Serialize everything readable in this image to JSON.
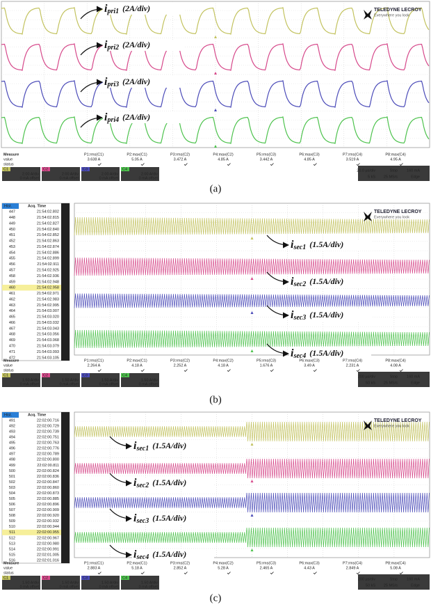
{
  "panels": [
    {
      "caption": "(a)",
      "brand": "TELEDYNE LECROY",
      "tagline": "Everywhere you look",
      "traces": [
        {
          "symbol": "i",
          "sub": "pri1",
          "scale": "(2A/div)"
        },
        {
          "symbol": "i",
          "sub": "pri2",
          "scale": "(2A/div)"
        },
        {
          "symbol": "i",
          "sub": "pri3",
          "scale": "(2A/div)"
        },
        {
          "symbol": "i",
          "sub": "pri4",
          "scale": "(2A/div)"
        }
      ],
      "measure": {
        "title": "Measure",
        "rows": [
          "value",
          "status"
        ],
        "params": [
          {
            "name": "P1:rms(C1)",
            "value": "3.638 A"
          },
          {
            "name": "P2:max(C1)",
            "value": "5.05 A"
          },
          {
            "name": "P3:rms(C2)",
            "value": "3.472 A"
          },
          {
            "name": "P4:max(C2)",
            "value": "4.85 A"
          },
          {
            "name": "P5:rms(C3)",
            "value": "3.442 A"
          },
          {
            "name": "P6:max(C3)",
            "value": "4.85 A"
          },
          {
            "name": "P7:rms(C4)",
            "value": "3.519 A"
          },
          {
            "name": "P8:max(C4)",
            "value": "4.95 A"
          }
        ]
      },
      "channels": [
        {
          "id": "C1",
          "scale": "2.00 A/div",
          "offset": "0 mA offset"
        },
        {
          "id": "C2",
          "scale": "2.00 A/div",
          "offset": "0 mA offset"
        },
        {
          "id": "C3",
          "scale": "2.00 A/div",
          "offset": "0 mA offset"
        },
        {
          "id": "C4",
          "scale": "2.00 A/div",
          "offset": "0 mA offset"
        }
      ],
      "timebase": [
        "20.0 µs/div",
        "Stop",
        "160 mA",
        "5 kS",
        "25 MS/s",
        "Edge"
      ]
    },
    {
      "caption": "(b)",
      "brand": "TELEDYNE LECROY",
      "tagline": "Everywhere you look",
      "traces": [
        {
          "symbol": "i",
          "sub": "sec1",
          "scale": "(1.5A/div)"
        },
        {
          "symbol": "i",
          "sub": "sec2",
          "scale": "(1.5A/div)"
        },
        {
          "symbol": "i",
          "sub": "sec3",
          "scale": "(1.5A/div)"
        },
        {
          "symbol": "i",
          "sub": "sec4",
          "scale": "(1.5A/div)"
        }
      ],
      "history": {
        "header": [
          "Hist.",
          "Acq. Time"
        ],
        "selected": 13,
        "rows": [
          [
            "447",
            "21:54:02.802"
          ],
          [
            "448",
            "21:54:02.815"
          ],
          [
            "449",
            "21:54:02.827"
          ],
          [
            "450",
            "21:54:02.840"
          ],
          [
            "451",
            "21:54:02.852"
          ],
          [
            "452",
            "21:54:02.863"
          ],
          [
            "453",
            "21:54:02.874"
          ],
          [
            "454",
            "21:54:02.886"
          ],
          [
            "455",
            "21:54:02.899"
          ],
          [
            "456",
            "21:54:02.911"
          ],
          [
            "457",
            "21:54:02.925"
          ],
          [
            "458",
            "21:54:02.936"
          ],
          [
            "459",
            "21:54:02.948"
          ],
          [
            "460",
            "21:54:02.958"
          ],
          [
            "461",
            "21:54:02.971"
          ],
          [
            "462",
            "21:54:02.983"
          ],
          [
            "463",
            "21:54:02.995"
          ],
          [
            "464",
            "21:54:03.007"
          ],
          [
            "465",
            "21:54:03.020"
          ],
          [
            "466",
            "21:54:03.032"
          ],
          [
            "467",
            "21:54:03.043"
          ],
          [
            "468",
            "21:54:03.056"
          ],
          [
            "469",
            "21:54:03.068"
          ],
          [
            "470",
            "21:54:03.079"
          ],
          [
            "471",
            "21:54:03.093"
          ],
          [
            "472",
            "21:54:03.105"
          ]
        ]
      },
      "measure": {
        "title": "Measure",
        "rows": [
          "value",
          "status"
        ],
        "params": [
          {
            "name": "P1:rms(C1)",
            "value": "2.264 A"
          },
          {
            "name": "P2:max(C1)",
            "value": "4.18 A"
          },
          {
            "name": "P3:rms(C2)",
            "value": "2.252 A"
          },
          {
            "name": "P4:max(C2)",
            "value": "4.18 A"
          },
          {
            "name": "P5:rms(C3)",
            "value": "1.676 A"
          },
          {
            "name": "P6:max(C3)",
            "value": "3.49 A"
          },
          {
            "name": "P7:rms(C4)",
            "value": "2.231 A"
          },
          {
            "name": "P8:max(C4)",
            "value": "4.08 A"
          }
        ]
      },
      "channels": [
        {
          "id": "C1",
          "scale": "1.50 A/div",
          "offset": "0 mA offset"
        },
        {
          "id": "C2",
          "scale": "1.50 A/div",
          "offset": "0 mA offset"
        },
        {
          "id": "C3",
          "scale": "1.50 A/div",
          "offset": "0 mA offset"
        },
        {
          "id": "C4",
          "scale": "1.50 A/div",
          "offset": "0 mA offset"
        }
      ],
      "timebase": [
        "200 µs/div",
        "Stop",
        "160 mA",
        "50 kS",
        "25 MS/s",
        "Edge"
      ]
    },
    {
      "caption": "(c)",
      "brand": "TELEDYNE LECROY",
      "tagline": "Everywhere you look",
      "traces": [
        {
          "symbol": "i",
          "sub": "sec1",
          "scale": "(1.5A/div)"
        },
        {
          "symbol": "i",
          "sub": "sec2",
          "scale": "(1.5A/div)"
        },
        {
          "symbol": "i",
          "sub": "sec3",
          "scale": "(1.5A/div)"
        },
        {
          "symbol": "i",
          "sub": "sec4",
          "scale": "(1.5A/div)"
        }
      ],
      "history": {
        "header": [
          "Hist.",
          "Acq. Time"
        ],
        "selected": 20,
        "rows": [
          [
            "491",
            "22:02:00.716"
          ],
          [
            "492",
            "22:02:00.729"
          ],
          [
            "493",
            "22:02:00.739"
          ],
          [
            "494",
            "22:02:00.751"
          ],
          [
            "495",
            "22:02:00.763"
          ],
          [
            "496",
            "22:02:00.776"
          ],
          [
            "497",
            "22:02:00.789"
          ],
          [
            "498",
            "22:02:00.800"
          ],
          [
            "499",
            "22:02:00.811"
          ],
          [
            "500",
            "22:02:00.824"
          ],
          [
            "501",
            "22:02:00.836"
          ],
          [
            "502",
            "22:02:00.847"
          ],
          [
            "503",
            "22:02:00.860"
          ],
          [
            "504",
            "22:02:00.873"
          ],
          [
            "505",
            "22:02:00.885"
          ],
          [
            "506",
            "22:02:00.896"
          ],
          [
            "507",
            "22:02:00.909"
          ],
          [
            "508",
            "22:02:00.920"
          ],
          [
            "509",
            "22:02:00.932"
          ],
          [
            "510",
            "22:02:00.944"
          ],
          [
            "511",
            "22:02:00.955"
          ],
          [
            "512",
            "22:02:00.967"
          ],
          [
            "513",
            "22:02:00.980"
          ],
          [
            "514",
            "22:02:00.991"
          ],
          [
            "515",
            "22:02:01.005"
          ],
          [
            "516",
            "22:02:01.016"
          ]
        ]
      },
      "measure": {
        "title": "Measure",
        "rows": [
          "value",
          "status"
        ],
        "params": [
          {
            "name": "P1:rms(C1)",
            "value": "2.883 A"
          },
          {
            "name": "P2:max(C1)",
            "value": "5.18 A"
          },
          {
            "name": "P3:rms(C2)",
            "value": "2.852 A"
          },
          {
            "name": "P4:max(C2)",
            "value": "5.28 A"
          },
          {
            "name": "P5:rms(C3)",
            "value": "2.465 A"
          },
          {
            "name": "P6:max(C3)",
            "value": "4.43 A"
          },
          {
            "name": "P7:rms(C4)",
            "value": "2.849 A"
          },
          {
            "name": "P8:max(C4)",
            "value": "5.08 A"
          }
        ]
      },
      "channels": [
        {
          "id": "C1",
          "scale": "1.50 A/div",
          "offset": "0 mA offset"
        },
        {
          "id": "C2",
          "scale": "1.50 A/div",
          "offset": "0 mA offset"
        },
        {
          "id": "C3",
          "scale": "1.50 A/div",
          "offset": "0 mA offset"
        },
        {
          "id": "C4",
          "scale": "1.50 A/div",
          "offset": "0 mA offset"
        }
      ],
      "timebase": [
        "200 µs/div",
        "Stop",
        "160 mA",
        "50 kS",
        "25 MS/s",
        "Edge"
      ]
    }
  ]
}
